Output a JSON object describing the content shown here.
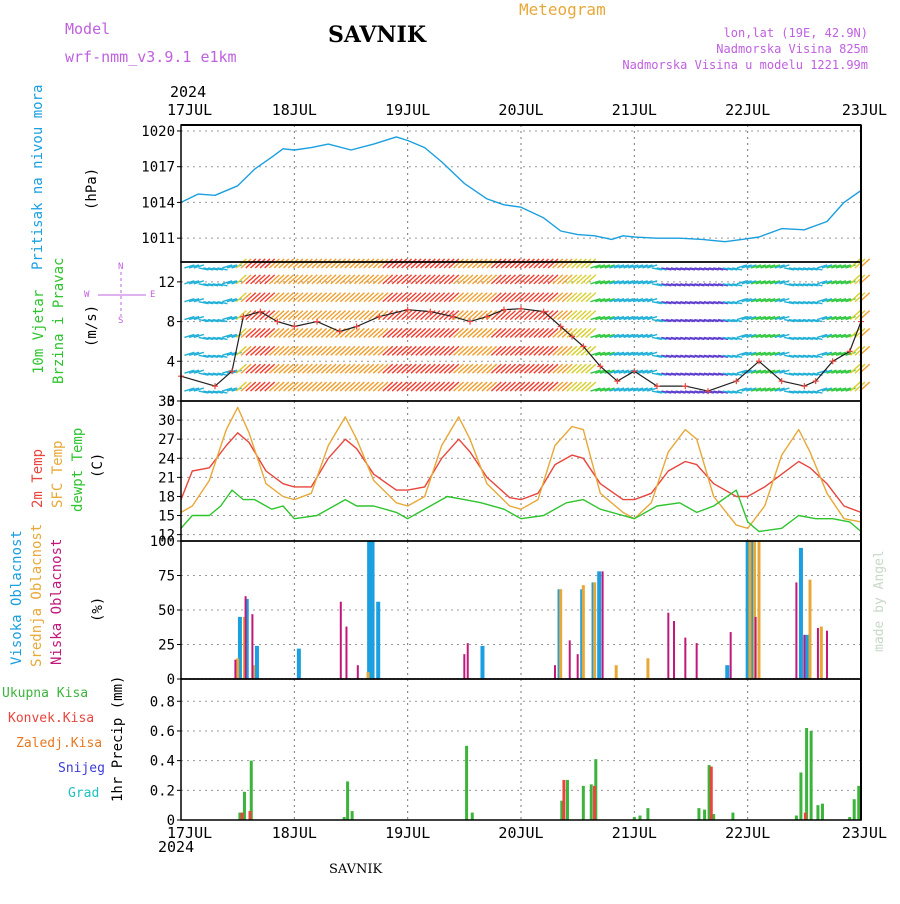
{
  "header": {
    "model_label": "Model",
    "model_name": "wrf-nmm_v3.9.1  e1km",
    "station": "SAVNIK",
    "chart_title": "Meteogram",
    "lonlat": "lon,lat (19E, 42.9N)",
    "elevation": "Nadmorska Visina 825m",
    "model_elevation": "Nadmorska Visina u modelu 1221.99m",
    "footer": "SAVNIK",
    "watermark": "made by Angel"
  },
  "time_axis": {
    "year": "2024",
    "days": [
      "17JUL",
      "18JUL",
      "19JUL",
      "20JUL",
      "21JUL",
      "22JUL",
      "23JUL"
    ],
    "start_day": "17JUL",
    "end_day": "23JUL"
  },
  "colors": {
    "pressure": "#1a9fe0",
    "temp2m": "#e8453c",
    "sfc": "#e8a838",
    "dewpt": "#2ec42e",
    "high_cloud": "#1a9fe0",
    "mid_cloud": "#e8a838",
    "low_cloud": "#c0187a",
    "precip_total": "#3cb43c",
    "precip_conv": "#e8453c",
    "precip_frz": "#e87820",
    "precip_snow": "#3c3cd8",
    "precip_hail": "#20c0c0",
    "wind_dir": "#c060e0",
    "title": "#e8a838",
    "model": "#c060e0"
  },
  "chart_data": [
    {
      "type": "line",
      "panel": "pressure",
      "ylabel_main": "Pritisak na nivou mora",
      "ylabel_unit": "(hPa)",
      "yticks": [
        1011,
        1014,
        1017,
        1020
      ],
      "ylim": [
        1009,
        1020.5
      ],
      "grid": true,
      "series": [
        {
          "color": "#1a9fe0",
          "x": [
            0,
            0.15,
            0.3,
            0.5,
            0.65,
            0.8,
            0.9,
            1.0,
            1.15,
            1.3,
            1.5,
            1.7,
            1.9,
            2.0,
            2.15,
            2.3,
            2.5,
            2.7,
            2.85,
            3.0,
            3.2,
            3.35,
            3.5,
            3.65,
            3.8,
            3.9,
            4.0,
            4.2,
            4.4,
            4.6,
            4.8,
            4.95,
            5.1,
            5.3,
            5.5,
            5.7,
            5.85,
            6.0
          ],
          "values": [
            1014.0,
            1014.7,
            1014.6,
            1015.4,
            1016.8,
            1017.8,
            1018.5,
            1018.4,
            1018.6,
            1018.9,
            1018.4,
            1018.9,
            1019.5,
            1019.2,
            1018.6,
            1017.4,
            1015.6,
            1014.3,
            1013.8,
            1013.6,
            1012.7,
            1011.6,
            1011.3,
            1011.2,
            1010.9,
            1011.2,
            1011.1,
            1011.0,
            1011.0,
            1010.9,
            1010.7,
            1010.9,
            1011.1,
            1011.8,
            1011.7,
            1012.4,
            1014.0,
            1015.0
          ]
        }
      ]
    },
    {
      "type": "scatter",
      "panel": "wind",
      "ylabel_main": "10m Vjetar",
      "ylabel_main2": "Brzina i Pravac",
      "ylabel_unit": "(m/s)",
      "compass": [
        "N",
        "W",
        "E",
        "S"
      ],
      "yticks": [
        0,
        4,
        8,
        12
      ],
      "ylim": [
        0,
        14
      ],
      "grid": true,
      "series": [
        {
          "name": "speed",
          "color": "#202020",
          "x": [
            0.0,
            0.3,
            0.45,
            0.55,
            0.7,
            0.85,
            1.0,
            1.2,
            1.4,
            1.55,
            1.75,
            2.0,
            2.2,
            2.4,
            2.55,
            2.7,
            2.85,
            3.0,
            3.2,
            3.35,
            3.45,
            3.55,
            3.7,
            3.85,
            4.0,
            4.2,
            4.45,
            4.65,
            4.9,
            5.1,
            5.3,
            5.5,
            5.6,
            5.75,
            5.9,
            6.0
          ],
          "values": [
            2.5,
            1.5,
            3.0,
            8.5,
            9.0,
            8.0,
            7.5,
            8.0,
            7.0,
            7.5,
            8.5,
            9.2,
            9.0,
            8.5,
            8.0,
            8.5,
            9.2,
            9.3,
            9.0,
            7.5,
            6.5,
            5.5,
            3.5,
            2.0,
            3.0,
            1.5,
            1.5,
            1.0,
            2.0,
            4.0,
            2.0,
            1.5,
            2.0,
            4.0,
            5.0,
            8.0
          ]
        }
      ]
    },
    {
      "type": "line",
      "panel": "temperature",
      "ylabel_main": "2m Temp",
      "ylabel_main2": "SFC Temp",
      "ylabel_main3": "dewpt Temp",
      "ylabel_unit": "(C)",
      "yticks": [
        12,
        15,
        18,
        21,
        24,
        27,
        30,
        33
      ],
      "ylim": [
        11,
        33
      ],
      "grid": true,
      "series": [
        {
          "name": "2m Temp",
          "color": "#e8453c",
          "x": [
            0,
            0.1,
            0.25,
            0.4,
            0.5,
            0.6,
            0.75,
            0.9,
            1.0,
            1.15,
            1.3,
            1.45,
            1.55,
            1.7,
            1.9,
            2.0,
            2.15,
            2.3,
            2.45,
            2.55,
            2.7,
            2.9,
            3.0,
            3.15,
            3.3,
            3.45,
            3.55,
            3.7,
            3.9,
            4.0,
            4.15,
            4.3,
            4.45,
            4.55,
            4.7,
            4.9,
            5.0,
            5.15,
            5.3,
            5.45,
            5.55,
            5.7,
            5.85,
            6.0
          ],
          "values": [
            17.5,
            22.0,
            22.5,
            26.0,
            28.0,
            26.5,
            22.0,
            20.0,
            19.5,
            19.5,
            24.0,
            27.0,
            25.5,
            21.5,
            19.0,
            19.0,
            19.5,
            24.0,
            27.0,
            25.0,
            21.0,
            17.8,
            17.5,
            18.5,
            23.0,
            24.5,
            24.0,
            20.0,
            17.5,
            17.5,
            18.5,
            22.0,
            23.5,
            23.0,
            20.0,
            18.0,
            18.0,
            19.5,
            21.5,
            23.5,
            22.5,
            20.0,
            16.5,
            15.5
          ]
        },
        {
          "name": "SFC Temp",
          "color": "#e8a838",
          "x": [
            0,
            0.1,
            0.25,
            0.4,
            0.5,
            0.6,
            0.75,
            0.9,
            1.0,
            1.15,
            1.3,
            1.45,
            1.55,
            1.7,
            1.9,
            2.0,
            2.15,
            2.3,
            2.45,
            2.55,
            2.7,
            2.9,
            3.0,
            3.15,
            3.3,
            3.45,
            3.55,
            3.7,
            3.9,
            4.0,
            4.15,
            4.3,
            4.45,
            4.55,
            4.7,
            4.9,
            5.0,
            5.15,
            5.3,
            5.45,
            5.55,
            5.7,
            5.85,
            6.0
          ],
          "values": [
            15.5,
            16.5,
            20.5,
            28.5,
            32.0,
            28.0,
            20.0,
            18.0,
            17.5,
            18.5,
            26.0,
            30.5,
            27.0,
            20.5,
            17.0,
            16.5,
            18.0,
            26.0,
            30.5,
            27.0,
            20.0,
            16.5,
            16.0,
            17.5,
            26.0,
            29.0,
            28.5,
            18.5,
            15.5,
            14.5,
            17.0,
            25.0,
            28.5,
            27.0,
            18.0,
            13.5,
            13.0,
            16.5,
            24.5,
            28.5,
            25.0,
            18.5,
            14.5,
            14.0
          ]
        },
        {
          "name": "dewpt Temp",
          "color": "#2ec42e",
          "x": [
            0,
            0.1,
            0.25,
            0.35,
            0.45,
            0.55,
            0.65,
            0.8,
            0.9,
            1.0,
            1.2,
            1.35,
            1.45,
            1.55,
            1.7,
            1.9,
            2.0,
            2.2,
            2.35,
            2.5,
            2.65,
            2.85,
            3.0,
            3.2,
            3.4,
            3.55,
            3.7,
            3.9,
            4.0,
            4.2,
            4.4,
            4.55,
            4.7,
            4.9,
            5.0,
            5.1,
            5.3,
            5.45,
            5.6,
            5.75,
            5.9,
            6.0
          ],
          "values": [
            13.0,
            15.0,
            15.0,
            16.5,
            19.0,
            17.5,
            17.5,
            16.0,
            16.5,
            14.5,
            15.0,
            16.5,
            17.5,
            16.5,
            16.5,
            15.5,
            14.5,
            16.5,
            18.0,
            17.5,
            17.0,
            16.0,
            14.5,
            15.0,
            17.0,
            17.5,
            16.0,
            15.0,
            14.5,
            16.5,
            17.0,
            15.5,
            16.5,
            19.0,
            14.0,
            12.5,
            13.0,
            15.0,
            14.5,
            14.5,
            14.0,
            12.5
          ]
        }
      ]
    },
    {
      "type": "bar",
      "panel": "clouds",
      "ylabel_main": "Visoka Oblacnost",
      "ylabel_main2": "Srednja Oblacnost",
      "ylabel_main3": "Niska Oblacnost",
      "ylabel_unit": "(%)",
      "yticks": [
        0,
        25,
        50,
        75,
        100
      ],
      "ylim": [
        0,
        100
      ],
      "grid": true,
      "series": [
        {
          "name": "Visoka Oblacnost",
          "color": "#1a9fe0",
          "x": [
            0.52,
            0.58,
            0.67,
            1.04,
            1.66,
            1.69,
            1.74,
            2.66,
            3.34,
            3.54,
            3.64,
            3.69,
            4.82,
            5.0,
            5.04,
            5.47,
            5.52
          ],
          "values": [
            45,
            58,
            24,
            22,
            100,
            100,
            56,
            24,
            65,
            65,
            70,
            78,
            10,
            100,
            100,
            95,
            32
          ]
        },
        {
          "name": "Srednja Oblacnost",
          "color": "#e8a838",
          "x": [
            0.5,
            0.56,
            0.64,
            1.65,
            3.35,
            3.55,
            3.65,
            3.84,
            4.12,
            5.02,
            5.06,
            5.1,
            5.55,
            5.65
          ],
          "values": [
            15,
            45,
            10,
            5,
            65,
            68,
            70,
            10,
            15,
            100,
            100,
            100,
            72,
            38
          ]
        },
        {
          "name": "Niska Oblacnost",
          "color": "#c0187a",
          "x": [
            0.48,
            0.57,
            0.63,
            1.41,
            1.46,
            1.56,
            2.5,
            2.53,
            3.3,
            3.43,
            3.5,
            3.72,
            4.3,
            4.35,
            4.45,
            4.55,
            4.85,
            5.07,
            5.43,
            5.5,
            5.62,
            5.7
          ],
          "values": [
            14,
            60,
            47,
            56,
            38,
            10,
            18,
            26,
            10,
            28,
            18,
            78,
            48,
            42,
            30,
            26,
            34,
            45,
            70,
            32,
            37,
            35
          ]
        }
      ]
    },
    {
      "type": "bar",
      "panel": "precipitation",
      "legend": [
        "Ukupna Kisa",
        "Konvek.Kisa",
        "Zaledj.Kisa",
        "Snijeg",
        "Grad"
      ],
      "ylabel_unit": "1hr Precip (mm)",
      "yticks": [
        0,
        0.2,
        0.4,
        0.6,
        0.8
      ],
      "ylim": [
        0,
        0.95
      ],
      "grid": true,
      "series": [
        {
          "name": "Ukupna Kisa",
          "color": "#3cb43c",
          "x": [
            0.52,
            0.56,
            0.62,
            1.44,
            1.47,
            1.51,
            2.52,
            2.57,
            3.36,
            3.41,
            3.55,
            3.62,
            3.66,
            4.0,
            4.05,
            4.12,
            4.57,
            4.62,
            4.66,
            4.7,
            4.87,
            5.43,
            5.47,
            5.52,
            5.56,
            5.62,
            5.66,
            5.9,
            5.94,
            5.98
          ],
          "values": [
            0.05,
            0.19,
            0.4,
            0.02,
            0.26,
            0.06,
            0.5,
            0.05,
            0.13,
            0.27,
            0.23,
            0.24,
            0.41,
            0.02,
            0.03,
            0.08,
            0.08,
            0.07,
            0.37,
            0.04,
            0.05,
            0.03,
            0.32,
            0.62,
            0.6,
            0.1,
            0.11,
            0.02,
            0.14,
            0.23
          ]
        },
        {
          "name": "Konvek.Kisa",
          "color": "#e8453c",
          "x": [
            0.53,
            0.6,
            3.37,
            3.64,
            4.67,
            5.5
          ],
          "values": [
            0.05,
            0.06,
            0.27,
            0.23,
            0.36,
            0.05
          ]
        }
      ]
    }
  ]
}
